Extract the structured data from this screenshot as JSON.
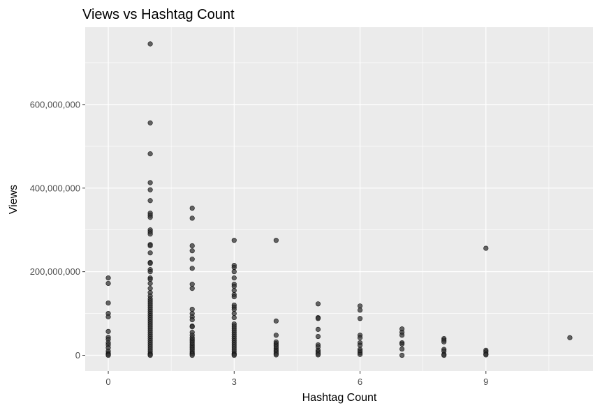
{
  "chart_data": {
    "type": "scatter",
    "title": "Views vs Hashtag Count",
    "xlabel": "Hashtag Count",
    "ylabel": "Views",
    "xlim": [
      -0.55,
      11.55
    ],
    "ylim": [
      -37500000,
      785000000
    ],
    "x_ticks": [
      0,
      3,
      6,
      9
    ],
    "x_tick_labels": [
      "0",
      "3",
      "6",
      "9"
    ],
    "x_minor": [
      1.5,
      4.5,
      7.5,
      10.5
    ],
    "y_ticks": [
      0,
      200000000,
      400000000,
      600000000
    ],
    "y_tick_labels": [
      "0",
      "200,000,000",
      "400,000,000",
      "600,000,000"
    ],
    "y_minor": [
      100000000,
      300000000,
      500000000,
      700000000
    ],
    "grid": true,
    "colors": {
      "panel": "#ebebeb",
      "grid": "#ffffff",
      "point_fill": "#333333",
      "point_stroke": "#000000",
      "tick_text": "#4d4d4d"
    },
    "points": [
      {
        "x": 0,
        "y": 185000000
      },
      {
        "x": 0,
        "y": 172000000
      },
      {
        "x": 0,
        "y": 125000000
      },
      {
        "x": 0,
        "y": 100000000
      },
      {
        "x": 0,
        "y": 92000000
      },
      {
        "x": 0,
        "y": 57000000
      },
      {
        "x": 0,
        "y": 43000000
      },
      {
        "x": 0,
        "y": 38000000
      },
      {
        "x": 0,
        "y": 30000000
      },
      {
        "x": 0,
        "y": 25000000
      },
      {
        "x": 0,
        "y": 18000000
      },
      {
        "x": 0,
        "y": 10000000
      },
      {
        "x": 0,
        "y": 5000000
      },
      {
        "x": 0,
        "y": 2000000
      },
      {
        "x": 0,
        "y": 0
      },
      {
        "x": 1,
        "y": 745000000
      },
      {
        "x": 1,
        "y": 556000000
      },
      {
        "x": 1,
        "y": 482000000
      },
      {
        "x": 1,
        "y": 413000000
      },
      {
        "x": 1,
        "y": 396000000
      },
      {
        "x": 1,
        "y": 370000000
      },
      {
        "x": 1,
        "y": 340000000
      },
      {
        "x": 1,
        "y": 335000000
      },
      {
        "x": 1,
        "y": 330000000
      },
      {
        "x": 1,
        "y": 300000000
      },
      {
        "x": 1,
        "y": 295000000
      },
      {
        "x": 1,
        "y": 290000000
      },
      {
        "x": 1,
        "y": 265000000
      },
      {
        "x": 1,
        "y": 262000000
      },
      {
        "x": 1,
        "y": 245000000
      },
      {
        "x": 1,
        "y": 222000000
      },
      {
        "x": 1,
        "y": 220000000
      },
      {
        "x": 1,
        "y": 205000000
      },
      {
        "x": 1,
        "y": 200000000
      },
      {
        "x": 1,
        "y": 185000000
      },
      {
        "x": 1,
        "y": 182000000
      },
      {
        "x": 1,
        "y": 172000000
      },
      {
        "x": 1,
        "y": 160000000
      },
      {
        "x": 1,
        "y": 150000000
      },
      {
        "x": 1,
        "y": 142000000
      },
      {
        "x": 1,
        "y": 135000000
      },
      {
        "x": 1,
        "y": 130000000
      },
      {
        "x": 1,
        "y": 125000000
      },
      {
        "x": 1,
        "y": 120000000
      },
      {
        "x": 1,
        "y": 115000000
      },
      {
        "x": 1,
        "y": 110000000
      },
      {
        "x": 1,
        "y": 105000000
      },
      {
        "x": 1,
        "y": 100000000
      },
      {
        "x": 1,
        "y": 95000000
      },
      {
        "x": 1,
        "y": 90000000
      },
      {
        "x": 1,
        "y": 85000000
      },
      {
        "x": 1,
        "y": 80000000
      },
      {
        "x": 1,
        "y": 75000000
      },
      {
        "x": 1,
        "y": 70000000
      },
      {
        "x": 1,
        "y": 65000000
      },
      {
        "x": 1,
        "y": 60000000
      },
      {
        "x": 1,
        "y": 55000000
      },
      {
        "x": 1,
        "y": 50000000
      },
      {
        "x": 1,
        "y": 45000000
      },
      {
        "x": 1,
        "y": 40000000
      },
      {
        "x": 1,
        "y": 35000000
      },
      {
        "x": 1,
        "y": 30000000
      },
      {
        "x": 1,
        "y": 25000000
      },
      {
        "x": 1,
        "y": 20000000
      },
      {
        "x": 1,
        "y": 15000000
      },
      {
        "x": 1,
        "y": 10000000
      },
      {
        "x": 1,
        "y": 5000000
      },
      {
        "x": 1,
        "y": 2000000
      },
      {
        "x": 1,
        "y": 0
      },
      {
        "x": 2,
        "y": 352000000
      },
      {
        "x": 2,
        "y": 328000000
      },
      {
        "x": 2,
        "y": 262000000
      },
      {
        "x": 2,
        "y": 250000000
      },
      {
        "x": 2,
        "y": 230000000
      },
      {
        "x": 2,
        "y": 208000000
      },
      {
        "x": 2,
        "y": 170000000
      },
      {
        "x": 2,
        "y": 160000000
      },
      {
        "x": 2,
        "y": 110000000
      },
      {
        "x": 2,
        "y": 100000000
      },
      {
        "x": 2,
        "y": 92000000
      },
      {
        "x": 2,
        "y": 85000000
      },
      {
        "x": 2,
        "y": 70000000
      },
      {
        "x": 2,
        "y": 68000000
      },
      {
        "x": 2,
        "y": 55000000
      },
      {
        "x": 2,
        "y": 48000000
      },
      {
        "x": 2,
        "y": 42000000
      },
      {
        "x": 2,
        "y": 38000000
      },
      {
        "x": 2,
        "y": 34000000
      },
      {
        "x": 2,
        "y": 30000000
      },
      {
        "x": 2,
        "y": 26000000
      },
      {
        "x": 2,
        "y": 22000000
      },
      {
        "x": 2,
        "y": 18000000
      },
      {
        "x": 2,
        "y": 14000000
      },
      {
        "x": 2,
        "y": 10000000
      },
      {
        "x": 2,
        "y": 6000000
      },
      {
        "x": 2,
        "y": 3000000
      },
      {
        "x": 2,
        "y": 0
      },
      {
        "x": 3,
        "y": 275000000
      },
      {
        "x": 3,
        "y": 215000000
      },
      {
        "x": 3,
        "y": 210000000
      },
      {
        "x": 3,
        "y": 200000000
      },
      {
        "x": 3,
        "y": 185000000
      },
      {
        "x": 3,
        "y": 170000000
      },
      {
        "x": 3,
        "y": 165000000
      },
      {
        "x": 3,
        "y": 155000000
      },
      {
        "x": 3,
        "y": 145000000
      },
      {
        "x": 3,
        "y": 140000000
      },
      {
        "x": 3,
        "y": 120000000
      },
      {
        "x": 3,
        "y": 115000000
      },
      {
        "x": 3,
        "y": 110000000
      },
      {
        "x": 3,
        "y": 100000000
      },
      {
        "x": 3,
        "y": 90000000
      },
      {
        "x": 3,
        "y": 75000000
      },
      {
        "x": 3,
        "y": 70000000
      },
      {
        "x": 3,
        "y": 65000000
      },
      {
        "x": 3,
        "y": 60000000
      },
      {
        "x": 3,
        "y": 55000000
      },
      {
        "x": 3,
        "y": 50000000
      },
      {
        "x": 3,
        "y": 45000000
      },
      {
        "x": 3,
        "y": 40000000
      },
      {
        "x": 3,
        "y": 35000000
      },
      {
        "x": 3,
        "y": 30000000
      },
      {
        "x": 3,
        "y": 25000000
      },
      {
        "x": 3,
        "y": 20000000
      },
      {
        "x": 3,
        "y": 15000000
      },
      {
        "x": 3,
        "y": 10000000
      },
      {
        "x": 3,
        "y": 5000000
      },
      {
        "x": 3,
        "y": 2000000
      },
      {
        "x": 3,
        "y": 0
      },
      {
        "x": 4,
        "y": 275000000
      },
      {
        "x": 4,
        "y": 82000000
      },
      {
        "x": 4,
        "y": 48000000
      },
      {
        "x": 4,
        "y": 32000000
      },
      {
        "x": 4,
        "y": 28000000
      },
      {
        "x": 4,
        "y": 24000000
      },
      {
        "x": 4,
        "y": 20000000
      },
      {
        "x": 4,
        "y": 16000000
      },
      {
        "x": 4,
        "y": 12000000
      },
      {
        "x": 4,
        "y": 8000000
      },
      {
        "x": 4,
        "y": 4000000
      },
      {
        "x": 4,
        "y": 1000000
      },
      {
        "x": 5,
        "y": 123000000
      },
      {
        "x": 5,
        "y": 90000000
      },
      {
        "x": 5,
        "y": 88000000
      },
      {
        "x": 5,
        "y": 62000000
      },
      {
        "x": 5,
        "y": 45000000
      },
      {
        "x": 5,
        "y": 25000000
      },
      {
        "x": 5,
        "y": 20000000
      },
      {
        "x": 5,
        "y": 12000000
      },
      {
        "x": 5,
        "y": 8000000
      },
      {
        "x": 5,
        "y": 4000000
      },
      {
        "x": 5,
        "y": 1000000
      },
      {
        "x": 6,
        "y": 118000000
      },
      {
        "x": 6,
        "y": 108000000
      },
      {
        "x": 6,
        "y": 88000000
      },
      {
        "x": 6,
        "y": 48000000
      },
      {
        "x": 6,
        "y": 42000000
      },
      {
        "x": 6,
        "y": 30000000
      },
      {
        "x": 6,
        "y": 24000000
      },
      {
        "x": 6,
        "y": 14000000
      },
      {
        "x": 6,
        "y": 10000000
      },
      {
        "x": 6,
        "y": 6000000
      },
      {
        "x": 6,
        "y": 2000000
      },
      {
        "x": 7,
        "y": 63000000
      },
      {
        "x": 7,
        "y": 55000000
      },
      {
        "x": 7,
        "y": 48000000
      },
      {
        "x": 7,
        "y": 30000000
      },
      {
        "x": 7,
        "y": 27000000
      },
      {
        "x": 7,
        "y": 15000000
      },
      {
        "x": 7,
        "y": 0
      },
      {
        "x": 8,
        "y": 40000000
      },
      {
        "x": 8,
        "y": 36000000
      },
      {
        "x": 8,
        "y": 32000000
      },
      {
        "x": 8,
        "y": 14000000
      },
      {
        "x": 8,
        "y": 10000000
      },
      {
        "x": 8,
        "y": 2000000
      },
      {
        "x": 8,
        "y": 0
      },
      {
        "x": 9,
        "y": 256000000
      },
      {
        "x": 9,
        "y": 12000000
      },
      {
        "x": 9,
        "y": 8000000
      },
      {
        "x": 9,
        "y": 3000000
      },
      {
        "x": 9,
        "y": 1000000
      },
      {
        "x": 11,
        "y": 42000000
      }
    ]
  }
}
